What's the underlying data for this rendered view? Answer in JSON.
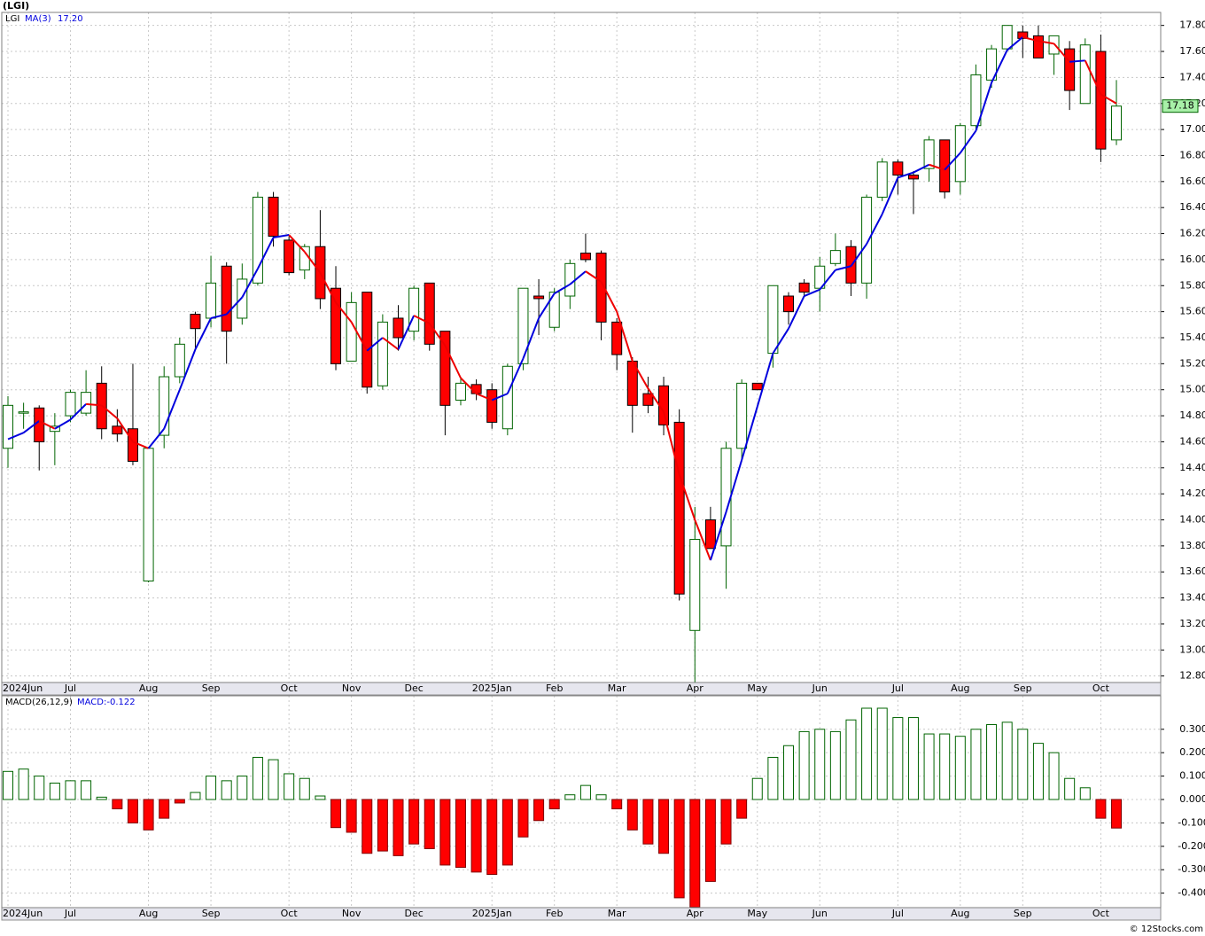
{
  "chart_data": [
    {
      "type": "candlestick",
      "title": "(LGI)",
      "name": "LGI",
      "categories": [
        "2024Jun",
        null,
        null,
        null,
        "Jul",
        null,
        null,
        null,
        null,
        "Aug",
        null,
        null,
        null,
        "Sep",
        null,
        null,
        null,
        null,
        "Oct",
        null,
        null,
        null,
        "Nov",
        null,
        null,
        null,
        "Dec",
        null,
        null,
        null,
        null,
        "2025Jan",
        null,
        null,
        null,
        "Feb",
        null,
        null,
        null,
        "Mar",
        null,
        null,
        null,
        null,
        "Apr",
        null,
        null,
        null,
        "May",
        null,
        null,
        null,
        "Jun",
        null,
        null,
        null,
        null,
        "Jul",
        null,
        null,
        null,
        "Aug",
        null,
        null,
        null,
        "Sep",
        null,
        null,
        null,
        null,
        "Oct",
        null
      ],
      "open": [
        14.55,
        14.82,
        14.86,
        14.68,
        14.8,
        14.82,
        15.05,
        14.72,
        14.7,
        13.53,
        14.65,
        15.1,
        15.58,
        15.55,
        15.95,
        15.55,
        15.82,
        16.48,
        16.15,
        15.92,
        16.1,
        15.78,
        15.22,
        15.75,
        15.03,
        15.55,
        15.45,
        15.82,
        15.45,
        14.92,
        15.04,
        15.0,
        14.7,
        15.2,
        15.72,
        15.48,
        15.72,
        16.05,
        16.05,
        15.52,
        15.22,
        14.97,
        15.03,
        14.75,
        13.15,
        14.0,
        13.8,
        14.55,
        15.05,
        15.28,
        15.72,
        15.82,
        15.78,
        15.97,
        16.1,
        15.82,
        16.48,
        16.75,
        16.65,
        16.7,
        16.92,
        16.6,
        17.03,
        17.38,
        17.62,
        17.75,
        17.72,
        17.58,
        17.62,
        17.2,
        17.6,
        16.92
      ],
      "high": [
        14.95,
        14.9,
        14.88,
        14.82,
        15.0,
        15.15,
        15.18,
        14.85,
        15.2,
        14.56,
        15.18,
        15.4,
        15.6,
        16.03,
        15.98,
        15.97,
        16.52,
        16.52,
        16.18,
        16.12,
        16.38,
        15.95,
        15.75,
        15.75,
        15.58,
        15.65,
        15.8,
        15.82,
        15.45,
        15.1,
        15.08,
        15.05,
        15.2,
        15.78,
        15.85,
        15.78,
        16.0,
        16.2,
        16.07,
        15.55,
        15.25,
        15.1,
        15.1,
        14.85,
        14.1,
        14.1,
        14.6,
        15.08,
        15.05,
        15.8,
        15.75,
        15.85,
        16.02,
        16.2,
        16.15,
        16.5,
        16.78,
        16.77,
        16.68,
        16.95,
        16.92,
        17.05,
        17.5,
        17.65,
        17.8,
        17.8,
        17.8,
        17.72,
        17.68,
        17.7,
        17.73,
        17.38
      ],
      "low": [
        14.4,
        14.7,
        14.38,
        14.42,
        14.75,
        14.8,
        14.62,
        14.6,
        14.42,
        13.52,
        14.55,
        15.05,
        15.3,
        15.48,
        15.2,
        15.5,
        15.8,
        16.1,
        15.88,
        15.85,
        15.62,
        15.15,
        15.22,
        14.97,
        15.0,
        15.3,
        15.38,
        15.3,
        14.65,
        14.88,
        14.92,
        14.7,
        14.65,
        15.15,
        15.42,
        15.45,
        15.62,
        15.98,
        15.38,
        15.15,
        14.67,
        14.82,
        14.65,
        13.38,
        12.75,
        13.78,
        13.47,
        14.45,
        15.0,
        15.17,
        15.5,
        15.72,
        15.6,
        15.95,
        15.72,
        15.7,
        16.45,
        16.5,
        16.35,
        16.6,
        16.47,
        16.5,
        17.0,
        17.32,
        17.6,
        17.55,
        17.55,
        17.42,
        17.15,
        17.2,
        16.75,
        16.88
      ],
      "close": [
        14.88,
        14.83,
        14.6,
        14.72,
        14.98,
        14.98,
        14.7,
        14.66,
        14.45,
        14.55,
        15.1,
        15.35,
        15.47,
        15.82,
        15.45,
        15.85,
        16.48,
        16.18,
        15.9,
        16.1,
        15.7,
        15.2,
        15.67,
        15.02,
        15.52,
        15.4,
        15.78,
        15.35,
        14.88,
        15.05,
        14.97,
        14.75,
        15.18,
        15.78,
        15.7,
        15.75,
        15.97,
        16.0,
        15.52,
        15.27,
        14.88,
        14.88,
        14.73,
        13.43,
        13.85,
        13.78,
        14.55,
        15.05,
        15.0,
        15.8,
        15.6,
        15.75,
        15.95,
        16.07,
        15.82,
        16.48,
        16.75,
        16.65,
        16.62,
        16.92,
        16.52,
        17.03,
        17.42,
        17.62,
        17.8,
        17.7,
        17.55,
        17.72,
        17.3,
        17.65,
        16.85,
        17.18
      ],
      "up_color": "#006400",
      "down_color": "#ff0000",
      "overlay": {
        "name": "MA(3)",
        "value_label": "17.20",
        "up_color": "#0000dd",
        "down_color": "#ee0000",
        "values": [
          14.62,
          14.67,
          14.76,
          14.7,
          14.77,
          14.89,
          14.88,
          14.78,
          14.6,
          14.55,
          14.7,
          15.0,
          15.31,
          15.55,
          15.58,
          15.71,
          15.93,
          16.17,
          16.19,
          16.06,
          15.9,
          15.67,
          15.52,
          15.3,
          15.4,
          15.31,
          15.57,
          15.51,
          15.34,
          15.09,
          14.97,
          14.92,
          14.97,
          15.24,
          15.55,
          15.74,
          15.81,
          15.91,
          15.83,
          15.6,
          15.22,
          15.01,
          14.83,
          14.35,
          14.0,
          13.69,
          14.06,
          14.46,
          14.87,
          15.28,
          15.47,
          15.72,
          15.77,
          15.92,
          15.95,
          16.12,
          16.35,
          16.63,
          16.67,
          16.73,
          16.69,
          16.82,
          16.99,
          17.36,
          17.61,
          17.71,
          17.68,
          17.66,
          17.52,
          17.53,
          17.27,
          17.2
        ]
      },
      "last_label": "17.18",
      "ylim": [
        12.75,
        17.9
      ],
      "yticks": [
        {
          "value": 12.8,
          "label": "12.80"
        },
        {
          "value": 13.0,
          "label": "13.00"
        },
        {
          "value": 13.2,
          "label": "13.20"
        },
        {
          "value": 13.4,
          "label": "13.40"
        },
        {
          "value": 13.6,
          "label": "13.60"
        },
        {
          "value": 13.8,
          "label": "13.80"
        },
        {
          "value": 14.0,
          "label": "14.00"
        },
        {
          "value": 14.2,
          "label": "14.20"
        },
        {
          "value": 14.4,
          "label": "14.40"
        },
        {
          "value": 14.6,
          "label": "14.60"
        },
        {
          "value": 14.8,
          "label": "14.80"
        },
        {
          "value": 15.0,
          "label": "15.00"
        },
        {
          "value": 15.2,
          "label": "15.20"
        },
        {
          "value": 15.4,
          "label": "15.40"
        },
        {
          "value": 15.6,
          "label": "15.60"
        },
        {
          "value": 15.8,
          "label": "15.80"
        },
        {
          "value": 16.0,
          "label": "16.00"
        },
        {
          "value": 16.2,
          "label": "16.20"
        },
        {
          "value": 16.4,
          "label": "16.40"
        },
        {
          "value": 16.6,
          "label": "16.60"
        },
        {
          "value": 16.8,
          "label": "16.80"
        },
        {
          "value": 17.0,
          "label": "17.00"
        },
        {
          "value": 17.2,
          "label": "17.20"
        },
        {
          "value": 17.4,
          "label": "17.40"
        },
        {
          "value": 17.6,
          "label": "17.60"
        },
        {
          "value": 17.8,
          "label": "17.80"
        }
      ],
      "grid": true
    },
    {
      "type": "histogram",
      "name": "MACD(26,12,9)",
      "legend_label": "MACD:-0.122",
      "categories": [
        "2024Jun",
        null,
        null,
        null,
        "Jul",
        null,
        null,
        null,
        null,
        "Aug",
        null,
        null,
        null,
        "Sep",
        null,
        null,
        null,
        null,
        "Oct",
        null,
        null,
        null,
        "Nov",
        null,
        null,
        null,
        "Dec",
        null,
        null,
        null,
        null,
        "2025Jan",
        null,
        null,
        null,
        "Feb",
        null,
        null,
        null,
        "Mar",
        null,
        null,
        null,
        null,
        "Apr",
        null,
        null,
        null,
        "May",
        null,
        null,
        null,
        "Jun",
        null,
        null,
        null,
        null,
        "Jul",
        null,
        null,
        null,
        "Aug",
        null,
        null,
        null,
        "Sep",
        null,
        null,
        null,
        null,
        "Oct",
        null
      ],
      "values": [
        0.12,
        0.13,
        0.1,
        0.07,
        0.08,
        0.08,
        0.01,
        -0.04,
        -0.1,
        -0.13,
        -0.08,
        -0.015,
        0.03,
        0.1,
        0.08,
        0.1,
        0.18,
        0.17,
        0.11,
        0.09,
        0.015,
        -0.12,
        -0.14,
        -0.23,
        -0.22,
        -0.24,
        -0.19,
        -0.21,
        -0.28,
        -0.29,
        -0.31,
        -0.32,
        -0.28,
        -0.16,
        -0.09,
        -0.04,
        0.02,
        0.06,
        0.02,
        -0.04,
        -0.13,
        -0.19,
        -0.23,
        -0.42,
        -0.46,
        -0.35,
        -0.19,
        -0.08,
        0.09,
        0.18,
        0.23,
        0.29,
        0.3,
        0.29,
        0.34,
        0.39,
        0.39,
        0.35,
        0.35,
        0.28,
        0.28,
        0.27,
        0.3,
        0.32,
        0.33,
        0.3,
        0.24,
        0.2,
        0.09,
        0.05,
        -0.08,
        -0.122
      ],
      "up_color": "#006400",
      "down_color": "#ff0000",
      "ylim": [
        -0.462,
        0.443
      ],
      "yticks": [
        {
          "value": -0.4,
          "label": "-0.400"
        },
        {
          "value": -0.3,
          "label": "-0.300"
        },
        {
          "value": -0.2,
          "label": "-0.200"
        },
        {
          "value": -0.1,
          "label": "-0.100"
        },
        {
          "value": 0,
          "label": "0.000"
        },
        {
          "value": 0.1,
          "label": "0.100"
        },
        {
          "value": 0.2,
          "label": "0.200"
        },
        {
          "value": 0.3,
          "label": "0.300"
        }
      ],
      "grid": true
    }
  ],
  "credit": "© 12Stocks.com"
}
